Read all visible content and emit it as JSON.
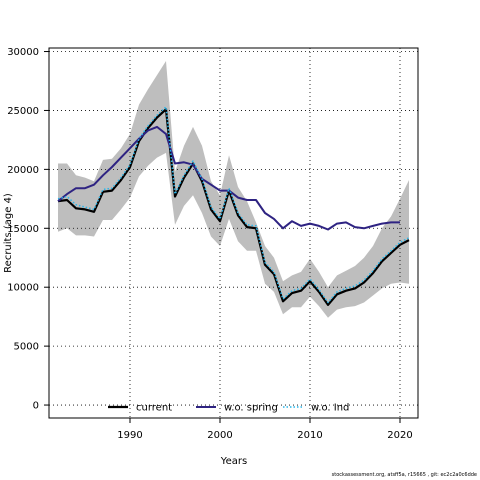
{
  "chart_data": {
    "type": "line",
    "xlabel": "Years",
    "ylabel": "Recruits (age 4)",
    "xlim": [
      1981,
      2022
    ],
    "ylim": [
      -1100,
      30300
    ],
    "x_ticks": [
      1990,
      2000,
      2010,
      2020
    ],
    "y_ticks": [
      0,
      5000,
      10000,
      15000,
      20000,
      25000,
      30000
    ],
    "grid": true,
    "legend_position": "bottom-center",
    "band": {
      "color": "#bebebe",
      "x": [
        1982,
        1983,
        1984,
        1985,
        1986,
        1987,
        1988,
        1989,
        1990,
        1991,
        1992,
        1993,
        1994,
        1995,
        1996,
        1997,
        1998,
        1999,
        2000,
        2001,
        2002,
        2003,
        2004,
        2005,
        2006,
        2007,
        2008,
        2009,
        2010,
        2011,
        2012,
        2013,
        2014,
        2015,
        2016,
        2017,
        2018,
        2019,
        2020,
        2021
      ],
      "upper": [
        20500,
        20500,
        19500,
        19300,
        19000,
        20800,
        20900,
        21800,
        23000,
        25500,
        26800,
        28000,
        29200,
        19800,
        22000,
        23600,
        22000,
        19000,
        17800,
        21200,
        18500,
        17300,
        15500,
        13500,
        12500,
        10500,
        11000,
        11300,
        12400,
        11300,
        10000,
        11000,
        11400,
        11800,
        12500,
        13500,
        15000,
        16000,
        17500,
        19100
      ],
      "lower": [
        14700,
        15000,
        14400,
        14400,
        14300,
        15700,
        15700,
        16600,
        17600,
        19400,
        20300,
        21000,
        21400,
        15300,
        16900,
        17800,
        16300,
        14300,
        13500,
        15800,
        13900,
        13100,
        13100,
        10300,
        9600,
        7700,
        8300,
        8300,
        9200,
        8400,
        7400,
        8100,
        8300,
        8400,
        8700,
        9300,
        9900,
        10300,
        10400,
        10300
      ]
    },
    "series": [
      {
        "name": "current",
        "color": "#000000",
        "dash": "solid",
        "width": 2.2,
        "x": [
          1982,
          1983,
          1984,
          1985,
          1986,
          1987,
          1988,
          1989,
          1990,
          1991,
          1992,
          1993,
          1994,
          1995,
          1996,
          1997,
          1998,
          1999,
          2000,
          2001,
          2002,
          2003,
          2004,
          2005,
          2006,
          2007,
          2008,
          2009,
          2010,
          2011,
          2012,
          2013,
          2014,
          2015,
          2016,
          2017,
          2018,
          2019,
          2020,
          2021
        ],
        "values": [
          17300,
          17400,
          16700,
          16600,
          16400,
          18100,
          18200,
          19100,
          20200,
          22400,
          23500,
          24400,
          25100,
          17700,
          19300,
          20500,
          19000,
          16600,
          15600,
          18200,
          16100,
          15100,
          15000,
          11900,
          11100,
          8800,
          9500,
          9700,
          10500,
          9600,
          8500,
          9400,
          9700,
          9900,
          10400,
          11200,
          12200,
          12900,
          13600,
          14000
        ]
      },
      {
        "name": "w.o. spring",
        "color": "#2e2382",
        "dash": "solid",
        "width": 2.0,
        "x": [
          1982,
          1983,
          1984,
          1985,
          1986,
          1987,
          1988,
          1989,
          1990,
          1991,
          1992,
          1993,
          1994,
          1995,
          1996,
          1997,
          1998,
          1999,
          2000,
          2001,
          2002,
          2003,
          2004,
          2005,
          2006,
          2007,
          2008,
          2009,
          2010,
          2011,
          2012,
          2013,
          2014,
          2015,
          2016,
          2017,
          2018,
          2019,
          2020
        ],
        "values": [
          17300,
          17900,
          18400,
          18400,
          18700,
          19500,
          20200,
          21000,
          21800,
          22600,
          23300,
          23600,
          23000,
          20500,
          20600,
          20400,
          19200,
          18700,
          18200,
          18200,
          17600,
          17400,
          17400,
          16300,
          15800,
          15000,
          15600,
          15200,
          15400,
          15200,
          14900,
          15400,
          15500,
          15100,
          15000,
          15200,
          15400,
          15500,
          15500
        ]
      },
      {
        "name": "w.o. Ind",
        "color": "#29b6ea",
        "dash": "dotted",
        "width": 1.5,
        "x": [
          1982,
          1983,
          1984,
          1985,
          1986,
          1987,
          1988,
          1989,
          1990,
          1991,
          1992,
          1993,
          1994,
          1995,
          1996,
          1997,
          1998,
          1999,
          2000,
          2001,
          2002,
          2003,
          2004,
          2005,
          2006,
          2007,
          2008,
          2009,
          2010,
          2011,
          2012,
          2013,
          2014,
          2015,
          2016,
          2017,
          2018,
          2019,
          2020,
          2021
        ],
        "values": [
          17500,
          17700,
          17000,
          16800,
          16600,
          18300,
          18400,
          19300,
          20400,
          22600,
          23700,
          24600,
          25300,
          17900,
          19500,
          20700,
          19200,
          16800,
          15800,
          18400,
          16300,
          15300,
          15200,
          12100,
          11300,
          9000,
          9700,
          9900,
          10700,
          9800,
          8700,
          9600,
          9900,
          10100,
          10600,
          11400,
          12400,
          13100,
          13800,
          14200
        ]
      }
    ]
  },
  "footnote": "stockassessment.org, atsff5a, r15665 ,  git: ec2c2a0c6dde"
}
